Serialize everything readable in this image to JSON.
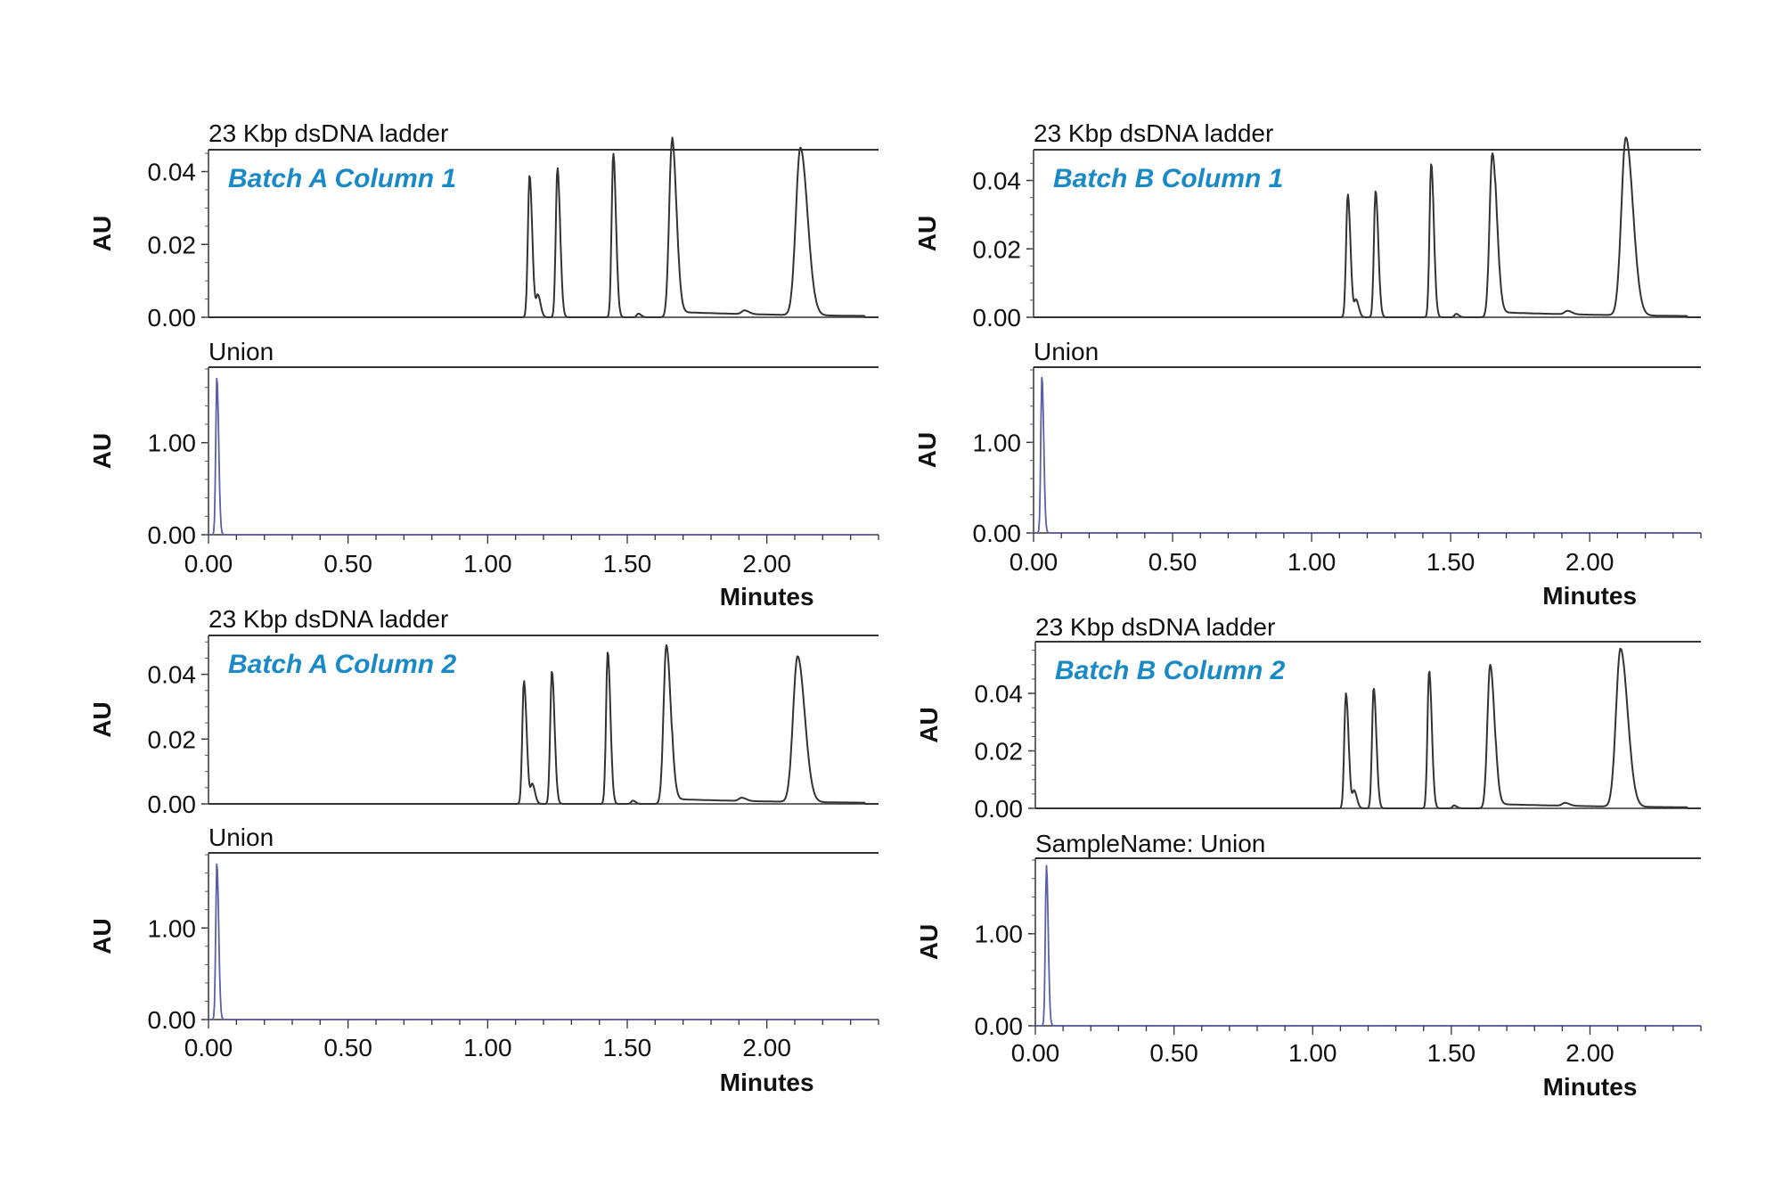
{
  "chart_data": [
    {
      "type": "line",
      "panel": "Batch A Column 1",
      "xlabel": "Minutes",
      "xlim": [
        0,
        2.4
      ],
      "xticks": [
        "0.00",
        "0.50",
        "1.00",
        "1.50",
        "2.00"
      ],
      "trace_color": "#333333",
      "union_color": "#5b5fa8",
      "label_color": "#1a8ac6",
      "top": {
        "title": "23 Kbp dsDNA ladder",
        "annotation": "Batch A Column 1",
        "ylabel": "AU",
        "ylim": [
          0,
          0.046
        ],
        "yticks": [
          "0.00",
          "0.02",
          "0.04"
        ],
        "peaks": [
          [
            1.15,
            0.039
          ],
          [
            1.18,
            0.006
          ],
          [
            1.25,
            0.041
          ],
          [
            1.45,
            0.045
          ],
          [
            1.54,
            0.001
          ],
          [
            1.66,
            0.048
          ],
          [
            1.92,
            0.001
          ],
          [
            2.12,
            0.046
          ]
        ]
      },
      "bottom": {
        "title": "Union",
        "ylabel": "AU",
        "ylim": [
          0,
          1.82
        ],
        "yticks": [
          "0.00",
          "1.00"
        ],
        "peaks": [
          [
            0.03,
            1.72
          ]
        ]
      }
    },
    {
      "type": "line",
      "panel": "Batch B Column 1",
      "xlabel": "Minutes",
      "xlim": [
        0,
        2.4
      ],
      "xticks": [
        "0.00",
        "0.50",
        "1.00",
        "1.50",
        "2.00"
      ],
      "trace_color": "#333333",
      "union_color": "#5b5fa8",
      "label_color": "#1a8ac6",
      "top": {
        "title": "23 Kbp dsDNA  ladder",
        "annotation": "Batch B Column 1",
        "ylabel": "AU",
        "ylim": [
          0,
          0.049
        ],
        "yticks": [
          "0.00",
          "0.02",
          "0.04"
        ],
        "peaks": [
          [
            1.13,
            0.036
          ],
          [
            1.16,
            0.005
          ],
          [
            1.23,
            0.037
          ],
          [
            1.43,
            0.045
          ],
          [
            1.52,
            0.001
          ],
          [
            1.65,
            0.048
          ],
          [
            1.92,
            0.001
          ],
          [
            2.13,
            0.052
          ]
        ]
      },
      "bottom": {
        "title": "Union",
        "ylabel": "AU",
        "ylim": [
          0,
          1.83
        ],
        "yticks": [
          "0.00",
          "1.00"
        ],
        "peaks": [
          [
            0.03,
            1.74
          ]
        ]
      }
    },
    {
      "type": "line",
      "panel": "Batch A Column 2",
      "xlabel": "Minutes",
      "xlim": [
        0,
        2.4
      ],
      "xticks": [
        "0.00",
        "0.50",
        "1.00",
        "1.50",
        "2.00"
      ],
      "trace_color": "#333333",
      "union_color": "#5b5fa8",
      "label_color": "#1a8ac6",
      "top": {
        "title": "23 Kbp dsDNA ladder",
        "annotation": "Batch A Column 2",
        "ylabel": "AU",
        "ylim": [
          0,
          0.052
        ],
        "yticks": [
          "0.00",
          "0.02",
          "0.04"
        ],
        "peaks": [
          [
            1.13,
            0.038
          ],
          [
            1.16,
            0.006
          ],
          [
            1.23,
            0.041
          ],
          [
            1.43,
            0.047
          ],
          [
            1.52,
            0.001
          ],
          [
            1.64,
            0.049
          ],
          [
            1.91,
            0.001
          ],
          [
            2.11,
            0.045
          ]
        ]
      },
      "bottom": {
        "title": "Union",
        "ylabel": "AU",
        "ylim": [
          0,
          1.82
        ],
        "yticks": [
          "0.00",
          "1.00"
        ],
        "peaks": [
          [
            0.03,
            1.72
          ]
        ]
      }
    },
    {
      "type": "line",
      "panel": "Batch B Column 2",
      "xlabel": "Minutes",
      "xlim": [
        0,
        2.4
      ],
      "xticks": [
        "0.00",
        "0.50",
        "1.00",
        "1.50",
        "2.00"
      ],
      "trace_color": "#333333",
      "union_color": "#5b5fa8",
      "label_color": "#1a8ac6",
      "top": {
        "title": "23 Kbp dsDNA ladder",
        "annotation": "Batch B Column 2",
        "ylabel": "AU",
        "ylim": [
          0,
          0.058
        ],
        "yticks": [
          "0.00",
          "0.02",
          "0.04"
        ],
        "peaks": [
          [
            1.12,
            0.04
          ],
          [
            1.15,
            0.006
          ],
          [
            1.22,
            0.042
          ],
          [
            1.42,
            0.048
          ],
          [
            1.51,
            0.001
          ],
          [
            1.64,
            0.05
          ],
          [
            1.91,
            0.001
          ],
          [
            2.11,
            0.055
          ]
        ]
      },
      "bottom": {
        "title": "SampleName: Union",
        "ylabel": "AU",
        "ylim": [
          0,
          1.82
        ],
        "yticks": [
          "0.00",
          "1.00"
        ],
        "peaks": [
          [
            0.04,
            1.74
          ]
        ]
      }
    }
  ]
}
